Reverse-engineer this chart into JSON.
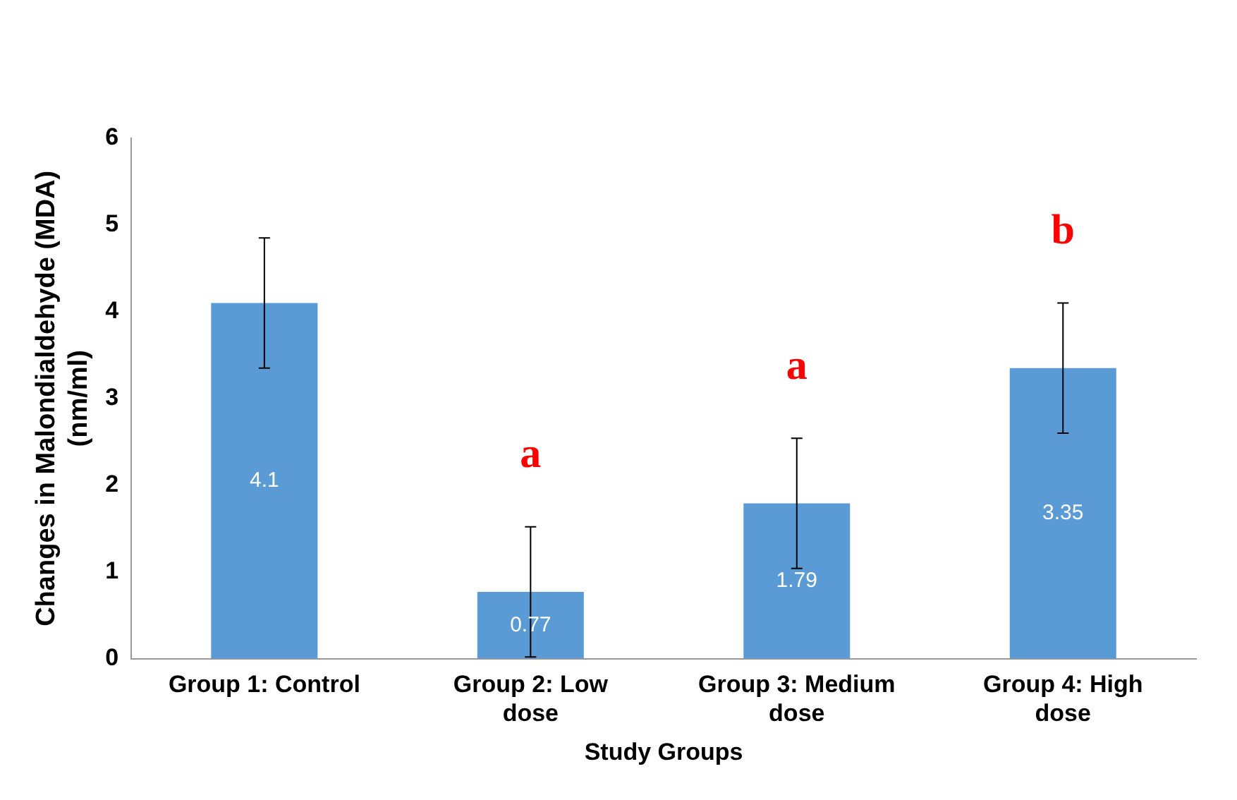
{
  "chart_data": {
    "type": "bar",
    "xlabel": "Study Groups",
    "ylabel": "Changes in Malondialdehyde (MDA) (nm/ml)",
    "categories": [
      "Group 1: Control",
      "Group 2: Low dose",
      "Group 3: Medium dose",
      "Group 4: High dose"
    ],
    "values": [
      4.1,
      0.77,
      1.79,
      3.35
    ],
    "errors": [
      0.75,
      0.75,
      0.75,
      0.75
    ],
    "color": "#5b9bd5",
    "data_labels": true,
    "ylim": [
      0,
      6
    ],
    "yticks": [
      0,
      1,
      2,
      3,
      4,
      5,
      6
    ],
    "grid": false,
    "legend": false,
    "annotations": [
      "a",
      "a",
      "b"
    ]
  }
}
